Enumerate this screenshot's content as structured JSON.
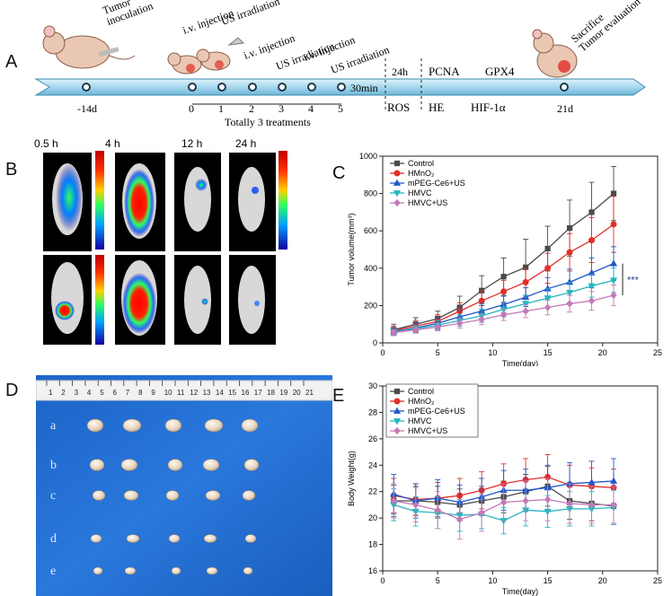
{
  "panelA": {
    "letter": "A",
    "timeline_days": [
      "-14d",
      "0",
      "1",
      "2",
      "3",
      "4",
      "5",
      "21d"
    ],
    "interval_labels": [
      "30min",
      "24h"
    ],
    "annotations": {
      "tumor": "Tumor\ninoculation",
      "iv1": "i.v. injection",
      "us1": "US irradiation",
      "iv2": "i.v. injection",
      "us2": "US irradiation",
      "iv3": "i.v. injection",
      "us3": "US irradiation",
      "sacrifice": "Sacrifice\nTumor evaluation"
    },
    "treatments": "Totally 3 treatments",
    "assays_top": [
      "PCNA",
      "GPX4"
    ],
    "assays_bottom": [
      "ROS",
      "HE",
      "HIF-1α"
    ]
  },
  "panelB": {
    "letter": "B",
    "timepoints": [
      "0.5 h",
      "4 h",
      "12 h",
      "24 h"
    ]
  },
  "panelD": {
    "letter": "D",
    "ruler_numbers": [
      "1",
      "2",
      "3",
      "4",
      "5",
      "6",
      "7",
      "8",
      "9",
      "10",
      "11",
      "12",
      "13",
      "14",
      "15",
      "16",
      "17",
      "18",
      "19",
      "20",
      "21"
    ],
    "row_labels": [
      "a",
      "b",
      "c",
      "d",
      "e"
    ]
  },
  "colors": {
    "control": "#4a4a4a",
    "hmno2": "#e0302a",
    "mpeg": "#2257c8",
    "hmvc": "#25b5c0",
    "hmvcus": "#c47ab8"
  },
  "chart_data": [
    {
      "id": "C",
      "letter": "C",
      "type": "line",
      "xlabel": "Time(day)",
      "ylabel": "Tumor volume(mm³)",
      "xlim": [
        0,
        25
      ],
      "ylim": [
        0,
        1000
      ],
      "xticks": [
        0,
        5,
        10,
        15,
        20,
        25
      ],
      "yticks": [
        0,
        200,
        400,
        600,
        800,
        1000
      ],
      "x": [
        1,
        3,
        5,
        7,
        9,
        11,
        13,
        15,
        17,
        19,
        21
      ],
      "significance": "***",
      "series": [
        {
          "name": "Control",
          "key": "control",
          "marker": "square",
          "values": [
            70,
            100,
            130,
            190,
            280,
            355,
            405,
            505,
            615,
            700,
            800
          ],
          "errors": [
            30,
            35,
            40,
            60,
            80,
            100,
            150,
            120,
            150,
            160,
            145
          ]
        },
        {
          "name": "HMnO₂",
          "key": "hmno2",
          "marker": "circle",
          "values": [
            65,
            90,
            115,
            170,
            225,
            275,
            325,
            400,
            485,
            550,
            635
          ],
          "errors": [
            25,
            30,
            35,
            45,
            55,
            60,
            70,
            80,
            100,
            120,
            150
          ]
        },
        {
          "name": "mPEG-Ce6+US",
          "key": "mpeg",
          "marker": "triangle-up",
          "values": [
            60,
            80,
            105,
            140,
            170,
            205,
            245,
            290,
            325,
            375,
            425
          ],
          "errors": [
            20,
            25,
            30,
            35,
            40,
            45,
            50,
            60,
            70,
            80,
            90
          ]
        },
        {
          "name": "HMVC",
          "key": "hmvc",
          "marker": "triangle-down",
          "values": [
            58,
            75,
            95,
            120,
            145,
            180,
            210,
            240,
            270,
            305,
            335
          ],
          "errors": [
            15,
            20,
            25,
            30,
            35,
            40,
            45,
            50,
            55,
            60,
            65
          ]
        },
        {
          "name": "HMVC+US",
          "key": "hmvcus",
          "marker": "diamond",
          "values": [
            55,
            70,
            85,
            105,
            125,
            150,
            170,
            190,
            210,
            225,
            255
          ],
          "errors": [
            15,
            18,
            20,
            25,
            28,
            30,
            35,
            40,
            45,
            50,
            55
          ]
        }
      ]
    },
    {
      "id": "E",
      "letter": "E",
      "type": "line",
      "xlabel": "Time(day)",
      "ylabel": "Body Weight(g)",
      "xlim": [
        0,
        25
      ],
      "ylim": [
        16,
        30
      ],
      "xticks": [
        0,
        5,
        10,
        15,
        20,
        25
      ],
      "yticks": [
        16,
        18,
        20,
        22,
        24,
        26,
        28,
        30
      ],
      "x": [
        1,
        3,
        5,
        7,
        9,
        11,
        13,
        15,
        17,
        19,
        21
      ],
      "series": [
        {
          "name": "Control",
          "key": "control",
          "marker": "square",
          "values": [
            21.3,
            21.3,
            21.2,
            21.0,
            21.3,
            21.6,
            22.0,
            22.4,
            21.3,
            21.1,
            20.9
          ],
          "errors": [
            1.2,
            1.1,
            1.2,
            1.2,
            1.1,
            1.2,
            1.3,
            1.5,
            1.4,
            1.3,
            1.3
          ]
        },
        {
          "name": "HMnO₂",
          "key": "hmno2",
          "marker": "circle",
          "values": [
            21.7,
            21.4,
            21.5,
            21.7,
            22.1,
            22.6,
            22.9,
            23.1,
            22.5,
            22.4,
            22.3
          ],
          "errors": [
            1.3,
            1.2,
            1.2,
            1.3,
            1.4,
            1.5,
            1.6,
            1.7,
            1.5,
            1.4,
            1.4
          ]
        },
        {
          "name": "mPEG-Ce6+US",
          "key": "mpeg",
          "marker": "triangle-up",
          "values": [
            21.8,
            21.3,
            21.5,
            21.2,
            21.6,
            22.1,
            22.1,
            22.3,
            22.6,
            22.7,
            22.8
          ],
          "errors": [
            1.5,
            1.3,
            1.4,
            1.3,
            1.4,
            1.5,
            1.6,
            1.7,
            1.6,
            1.6,
            1.7
          ]
        },
        {
          "name": "HMVC",
          "key": "hmvc",
          "marker": "triangle-down",
          "values": [
            21.0,
            20.5,
            20.4,
            20.2,
            20.3,
            19.8,
            20.6,
            20.5,
            20.7,
            20.7,
            20.8
          ],
          "errors": [
            1.2,
            1.1,
            1.2,
            1.2,
            1.1,
            1.0,
            1.2,
            1.2,
            1.3,
            1.3,
            1.3
          ]
        },
        {
          "name": "HMVC+US",
          "key": "hmvcus",
          "marker": "diamond",
          "values": [
            21.3,
            21.0,
            20.6,
            19.9,
            20.4,
            21.2,
            21.3,
            21.4,
            21.1,
            21.0,
            21.0
          ],
          "errors": [
            1.3,
            1.3,
            1.4,
            1.5,
            1.4,
            1.4,
            1.5,
            1.6,
            1.5,
            1.4,
            1.4
          ]
        }
      ]
    }
  ]
}
